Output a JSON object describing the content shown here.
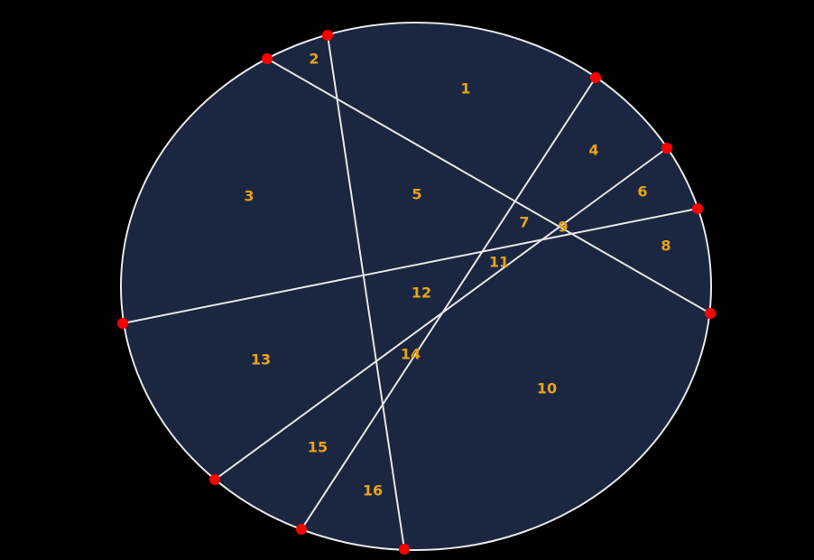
{
  "diagram": {
    "background_color": "#000000",
    "disk_fill_color": "#1b2640",
    "line_color": "#e6e6e6",
    "point_color": "#ff0000",
    "label_color": "#e8a317",
    "points": [
      "P1",
      "P2",
      "P3",
      "P4",
      "P5",
      "P6",
      "P7",
      "P8",
      "P9",
      "P10"
    ],
    "chords": [
      {
        "from": "P1",
        "to": "P10"
      },
      {
        "from": "P2",
        "to": "P7"
      },
      {
        "from": "P3",
        "to": "P9"
      },
      {
        "from": "P4",
        "to": "P8"
      },
      {
        "from": "P5",
        "to": "P6"
      }
    ],
    "region_labels": [
      "1",
      "2",
      "3",
      "4",
      "5",
      "6",
      "7",
      "8",
      "9",
      "10",
      "11",
      "12",
      "13",
      "14",
      "15",
      "16"
    ]
  }
}
